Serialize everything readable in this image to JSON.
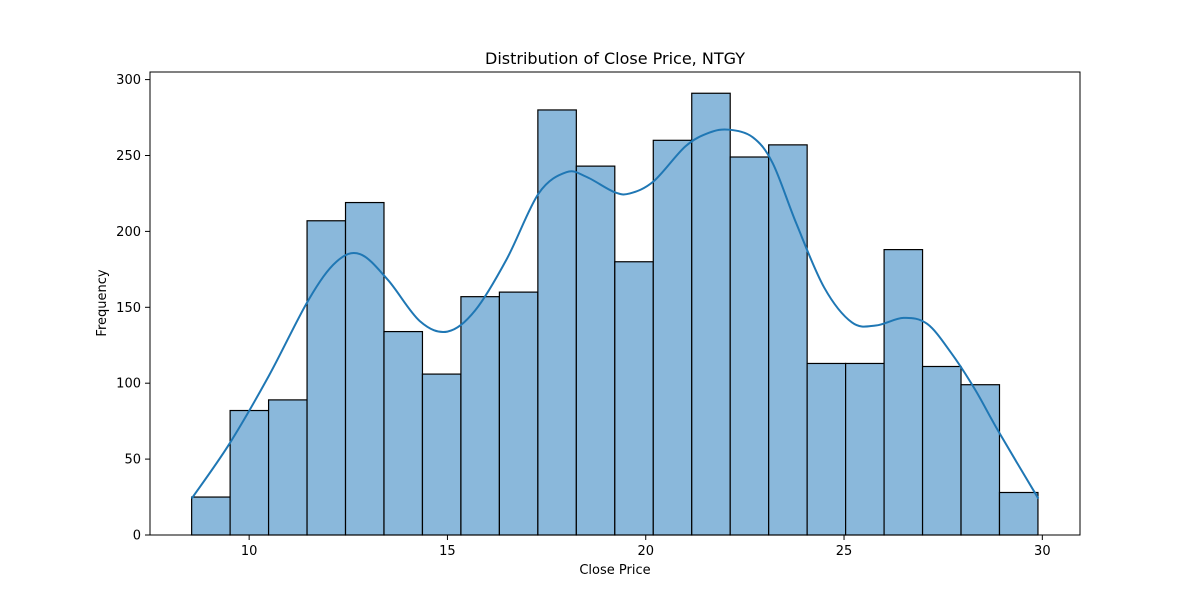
{
  "chart_data": {
    "type": "bar",
    "title": "Distribution of Close Price, NTGY",
    "xlabel": "Close Price",
    "ylabel": "Frequency",
    "xlim": [
      7.5,
      30.95
    ],
    "ylim": [
      0,
      305
    ],
    "xticks": [
      10,
      15,
      20,
      25,
      30
    ],
    "yticks": [
      0,
      50,
      100,
      150,
      200,
      250,
      300
    ],
    "bin_edges": [
      8.55,
      9.52,
      10.49,
      11.46,
      12.43,
      13.4,
      14.37,
      15.34,
      16.31,
      17.28,
      18.25,
      19.22,
      20.19,
      21.16,
      22.13,
      23.1,
      24.07,
      25.04,
      26.01,
      26.98,
      27.95,
      28.92,
      29.89
    ],
    "values": [
      25,
      82,
      89,
      207,
      219,
      134,
      106,
      157,
      160,
      280,
      243,
      180,
      260,
      291,
      249,
      257,
      113,
      113,
      188,
      111,
      99,
      28
    ],
    "kde": {
      "x": [
        8.55,
        9.5,
        10.5,
        11.5,
        12.2,
        12.8,
        13.5,
        14.3,
        15.0,
        15.7,
        16.5,
        17.3,
        18.0,
        18.5,
        19.2,
        19.6,
        20.2,
        21.0,
        21.6,
        22.1,
        22.7,
        23.2,
        23.8,
        24.5,
        25.2,
        25.8,
        26.5,
        27.1,
        27.7,
        28.3,
        28.9,
        29.9
      ],
      "y": [
        24,
        60,
        105,
        155,
        180,
        185,
        168,
        141,
        134,
        148,
        182,
        225,
        239,
        236,
        226,
        225,
        233,
        256,
        265,
        267,
        262,
        245,
        205,
        163,
        140,
        138,
        143,
        139,
        120,
        96,
        68,
        24
      ]
    },
    "grid": false,
    "legend": "none",
    "colors": {
      "bar_fill": "#8ab8db",
      "bar_edge": "#000000",
      "kde_line": "#1f77b4"
    }
  }
}
